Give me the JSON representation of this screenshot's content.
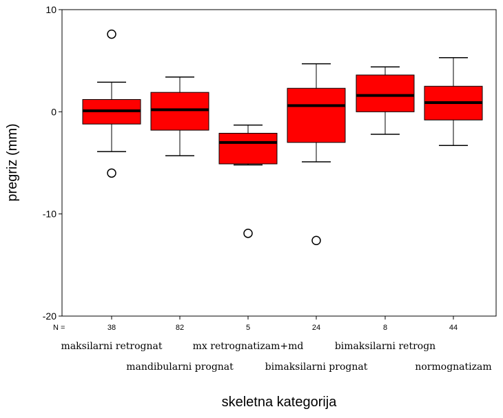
{
  "chart_data": {
    "type": "boxplot",
    "xlabel": "skeletna kategorija",
    "ylabel": "pregriz (mm)",
    "ylim": [
      -20,
      10
    ],
    "yticks": [
      10,
      0,
      -10,
      -20
    ],
    "n_prefix": "N =",
    "grid": false,
    "categories": [
      "maksilarni retrognat",
      "mandibularni prognat",
      "mx retrognatizam+md",
      "bimaksilarni prognat",
      "bimaksilarni retrogn",
      "normognatizam"
    ],
    "n": [
      "38",
      "82",
      "5",
      "24",
      "8",
      "44"
    ],
    "boxes": [
      {
        "whisker_low": -3.9,
        "q1": -1.2,
        "median": 0.1,
        "q3": 1.2,
        "whisker_high": 2.9,
        "outliers": [
          7.6,
          -6.0
        ]
      },
      {
        "whisker_low": -4.3,
        "q1": -1.8,
        "median": 0.2,
        "q3": 1.9,
        "whisker_high": 3.4,
        "outliers": []
      },
      {
        "whisker_low": -5.2,
        "q1": -5.1,
        "median": -3.0,
        "q3": -2.1,
        "whisker_high": -1.3,
        "outliers": [
          -11.9
        ]
      },
      {
        "whisker_low": -4.9,
        "q1": -3.0,
        "median": 0.6,
        "q3": 2.3,
        "whisker_high": 4.7,
        "outliers": [
          -12.6
        ]
      },
      {
        "whisker_low": -2.2,
        "q1": 0.0,
        "median": 1.6,
        "q3": 3.6,
        "whisker_high": 4.4,
        "outliers": []
      },
      {
        "whisker_low": -3.3,
        "q1": -0.8,
        "median": 0.9,
        "q3": 2.5,
        "whisker_high": 5.3,
        "outliers": []
      }
    ],
    "box_color": "#ff0000"
  }
}
